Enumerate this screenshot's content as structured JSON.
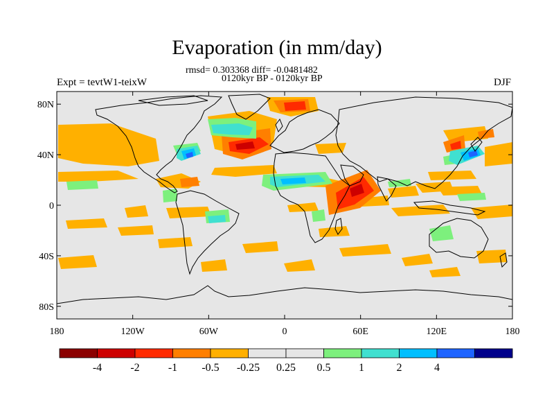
{
  "figure": {
    "title": "Evaporation (in mm/day)",
    "stats_text": "rmsd= 0.303368 diff= -0.0481482",
    "period_text": "0120kyr BP - 0120kyr BP",
    "experiment_text": "Expt = tevtW1-teixW",
    "season_text": "DJF"
  },
  "axes": {
    "lat_ticks": [
      {
        "value": 80,
        "label": "80N"
      },
      {
        "value": 40,
        "label": "40N"
      },
      {
        "value": 0,
        "label": "0"
      },
      {
        "value": -40,
        "label": "40S"
      },
      {
        "value": -80,
        "label": "80S"
      }
    ],
    "lon_ticks": [
      {
        "value": -180,
        "label": "180"
      },
      {
        "value": -120,
        "label": "120W"
      },
      {
        "value": -60,
        "label": "60W"
      },
      {
        "value": 0,
        "label": "0"
      },
      {
        "value": 60,
        "label": "60E"
      },
      {
        "value": 120,
        "label": "120E"
      },
      {
        "value": 180,
        "label": "180"
      }
    ]
  },
  "colorbar": {
    "colors": [
      "#8b0000",
      "#cd0000",
      "#ff2a00",
      "#ff7f00",
      "#ffb000",
      "#e6e6e6",
      "#e6e6e6",
      "#7df07d",
      "#40e0d0",
      "#00bfff",
      "#1e64ff",
      "#00008b"
    ],
    "labels": [
      "-4",
      "-2",
      "-1",
      "-0.5",
      "-0.25",
      "0.25",
      "0.5",
      "1",
      "2",
      "4"
    ]
  },
  "colors": {
    "background_field": "#e6e6e6",
    "land_outline": "#000000"
  }
}
